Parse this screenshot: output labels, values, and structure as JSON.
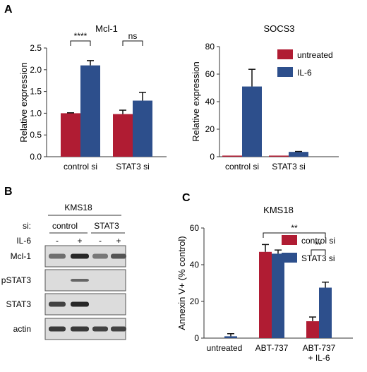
{
  "panels": {
    "A": "A",
    "B": "B",
    "C": "C"
  },
  "colors": {
    "untreated": "#b01c33",
    "il6": "#2d4f8c",
    "control_si": "#b01c33",
    "stat3_si": "#2d4f8c",
    "axis": "#333333"
  },
  "chart_data": [
    {
      "id": "mcl1",
      "type": "bar",
      "title": "Mcl-1",
      "xlabel": "",
      "ylabel": "Relative expression",
      "ylim": [
        0,
        2.5
      ],
      "yticks": [
        "0.0",
        "0.5",
        "1.0",
        "1.5",
        "2.0",
        "2.5"
      ],
      "categories": [
        "control si",
        "STAT3 si"
      ],
      "series": [
        {
          "name": "untreated",
          "values": [
            1.0,
            0.98
          ],
          "errors": [
            0.01,
            0.09
          ]
        },
        {
          "name": "IL-6",
          "values": [
            2.1,
            1.29
          ],
          "errors": [
            0.11,
            0.19
          ]
        }
      ],
      "annotations": [
        "****",
        "ns"
      ],
      "legend": "none"
    },
    {
      "id": "socs3",
      "type": "bar",
      "title": "SOCS3",
      "xlabel": "",
      "ylabel": "Relative expression",
      "ylim": [
        0,
        80
      ],
      "yticks": [
        "0",
        "20",
        "40",
        "60",
        "80"
      ],
      "categories": [
        "control si",
        "STAT3 si"
      ],
      "series": [
        {
          "name": "untreated",
          "values": [
            0.8,
            0.8
          ],
          "errors": [
            0,
            0
          ]
        },
        {
          "name": "IL-6",
          "values": [
            51,
            3.5
          ],
          "errors": [
            12.5,
            0.3
          ]
        }
      ],
      "legend": "top-right"
    },
    {
      "id": "annexin",
      "type": "bar",
      "title": "KMS18",
      "xlabel": "",
      "ylabel": "Annexin V+ (% control)",
      "ylim": [
        0,
        60
      ],
      "yticks": [
        "0",
        "20",
        "40",
        "60"
      ],
      "categories": [
        "untreated",
        "ABT-737",
        "ABT-737\n+ IL-6"
      ],
      "series": [
        {
          "name": "control si",
          "values": [
            0,
            47,
            9.2
          ],
          "errors": [
            0,
            4.0,
            2.3
          ]
        },
        {
          "name": "STAT3 si",
          "values": [
            1.0,
            46,
            27.5
          ],
          "errors": [
            1.4,
            2.0,
            3.0
          ]
        }
      ],
      "annotations": [
        "**",
        "**"
      ],
      "legend": "top-right"
    }
  ],
  "blot": {
    "cell_line": "KMS18",
    "si_label": "si:",
    "si_groups": [
      "control",
      "STAT3"
    ],
    "il6_label": "IL-6",
    "il6_states": [
      "-",
      "+",
      "-",
      "+"
    ],
    "rows": [
      {
        "label": "Mcl-1",
        "bands": [
          0.55,
          0.95,
          0.5,
          0.7
        ]
      },
      {
        "label": "pSTAT3",
        "bands": [
          0.0,
          0.6,
          0.0,
          0.0
        ]
      },
      {
        "label": "STAT3",
        "bands": [
          0.8,
          0.95,
          0.0,
          0.0
        ]
      },
      {
        "label": "actin",
        "bands": [
          0.85,
          0.85,
          0.8,
          0.8
        ]
      }
    ]
  }
}
